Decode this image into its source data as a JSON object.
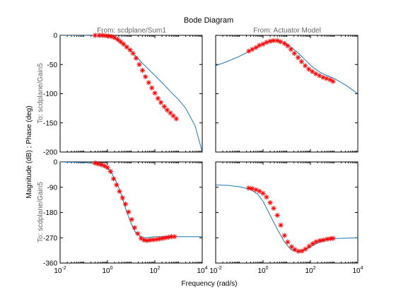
{
  "chart_data": {
    "type": "line",
    "title": "Bode Diagram",
    "xlabel": "Frequency  (rad/s)",
    "ylabel": "Magnitude (dB) ; Phase (deg)",
    "row_label": "To: scdplane/Gain5",
    "columns": [
      "From: scdplane/Sum1",
      "From: Actuator Model"
    ],
    "x_scale": "log",
    "xlim": [
      0.01,
      10000
    ],
    "x_ticks": [
      0.01,
      1,
      100,
      10000
    ],
    "x_tick_labels": [
      "10",
      "10",
      "10",
      "10"
    ],
    "x_tick_exponents": [
      "-2",
      "0",
      "2",
      "4"
    ],
    "line_color": "#1f77b4",
    "marker_color": "#ff0000",
    "marker": "*",
    "grid": false,
    "panels": [
      {
        "row": "magnitude",
        "column": 0,
        "ylim": [
          -200,
          0
        ],
        "y_ticks": [
          0,
          -50,
          -100,
          -150,
          -200
        ],
        "y_tick_labels": [
          "0",
          "-50",
          "-100",
          "-150",
          "-200"
        ],
        "line": {
          "x": [
            0.01,
            0.1,
            0.5,
            1,
            2,
            4,
            8,
            15,
            30,
            60,
            120,
            250,
            500,
            1000,
            2000,
            5000,
            10000
          ],
          "y": [
            0,
            0,
            -0.5,
            -1.5,
            -5,
            -13,
            -24,
            -35,
            -48,
            -60,
            -72,
            -85,
            -98,
            -110,
            -125,
            -155,
            -200
          ]
        },
        "markers": {
          "x": [
            0.3,
            0.45,
            0.6,
            0.8,
            1.1,
            1.5,
            2,
            2.7,
            3.6,
            4.8,
            6.5,
            9,
            12,
            16,
            22,
            30,
            40,
            55,
            75,
            100,
            135,
            180,
            250,
            330,
            450,
            600,
            800
          ],
          "y": [
            0,
            0,
            0,
            -0.5,
            -1,
            -2,
            -4,
            -7,
            -11,
            -15,
            -20,
            -25,
            -31,
            -39,
            -50,
            -60,
            -71,
            -81,
            -90,
            -99,
            -108,
            -115,
            -122,
            -128,
            -133,
            -138,
            -143
          ]
        }
      },
      {
        "row": "magnitude",
        "column": 1,
        "ylim": [
          -200,
          0
        ],
        "y_ticks": [
          0,
          -50,
          -100,
          -150,
          -200
        ],
        "y_tick_labels": [
          "",
          "",
          "",
          "",
          ""
        ],
        "line": {
          "x": [
            0.01,
            0.03,
            0.1,
            0.3,
            1,
            2,
            4,
            8,
            15,
            30,
            60,
            120,
            250,
            500,
            1000,
            3000,
            10000
          ],
          "y": [
            -52,
            -45,
            -36,
            -26,
            -15,
            -10,
            -9,
            -12,
            -20,
            -30,
            -42,
            -54,
            -63,
            -69,
            -74,
            -85,
            -100
          ]
        },
        "markers": {
          "x": [
            0.25,
            0.35,
            0.5,
            0.7,
            1,
            1.4,
            2,
            2.8,
            4,
            5.5,
            8,
            11,
            15,
            21,
            30,
            42,
            60,
            85,
            120,
            170,
            240,
            340,
            480,
            680,
            900
          ],
          "y": [
            -27,
            -24,
            -21,
            -17,
            -15,
            -12,
            -10,
            -9,
            -9,
            -11,
            -14,
            -18,
            -24,
            -31,
            -38,
            -45,
            -52,
            -58,
            -62,
            -66,
            -69,
            -72,
            -74,
            -76,
            -79
          ]
        }
      },
      {
        "row": "phase",
        "column": 0,
        "ylim": [
          -360,
          0
        ],
        "y_ticks": [
          0,
          -90,
          -180,
          -270,
          -360
        ],
        "y_tick_labels": [
          "0",
          "-90",
          "-180",
          "-270",
          "-360"
        ],
        "line": {
          "x": [
            0.01,
            0.1,
            0.3,
            0.6,
            1,
            1.5,
            2.5,
            4,
            6,
            10,
            15,
            25,
            40,
            60,
            100,
            200,
            400,
            1000,
            10000
          ],
          "y": [
            0,
            -2,
            -6,
            -12,
            -22,
            -40,
            -75,
            -120,
            -170,
            -220,
            -250,
            -265,
            -270,
            -268,
            -266,
            -266,
            -266,
            -266,
            -266
          ]
        },
        "markers": {
          "x": [
            0.3,
            0.4,
            0.55,
            0.75,
            1,
            1.35,
            1.8,
            2.4,
            3.2,
            4.3,
            5.8,
            7.8,
            10.5,
            14,
            19,
            26,
            35,
            47,
            63,
            85,
            115,
            155,
            210,
            280,
            380,
            500,
            680
          ],
          "y": [
            -4,
            -7,
            -10,
            -14,
            -20,
            -34,
            -60,
            -82,
            -105,
            -128,
            -150,
            -178,
            -205,
            -234,
            -255,
            -272,
            -278,
            -280,
            -278,
            -277,
            -276,
            -274,
            -272,
            -270,
            -268,
            -266,
            -266
          ]
        }
      },
      {
        "row": "phase",
        "column": 1,
        "ylim": [
          -360,
          0
        ],
        "y_ticks": [
          0,
          -90,
          -180,
          -270,
          -360
        ],
        "y_tick_labels": [
          "",
          "",
          "",
          "",
          ""
        ],
        "line": {
          "x": [
            0.01,
            0.03,
            0.1,
            0.3,
            0.6,
            1,
            2,
            4,
            8,
            15,
            30,
            60,
            120,
            250,
            500,
            1000,
            10000
          ],
          "y": [
            -82,
            -83,
            -88,
            -98,
            -115,
            -140,
            -190,
            -240,
            -285,
            -312,
            -320,
            -312,
            -298,
            -285,
            -276,
            -273,
            -270
          ]
        },
        "markers": {
          "x": [
            0.25,
            0.35,
            0.5,
            0.7,
            1,
            1.4,
            2,
            2.8,
            4,
            5.6,
            8,
            11,
            16,
            22,
            31,
            44,
            62,
            88,
            125,
            175,
            250,
            350,
            500,
            700,
            900
          ],
          "y": [
            -93,
            -95,
            -99,
            -104,
            -112,
            -125,
            -145,
            -165,
            -190,
            -225,
            -262,
            -285,
            -302,
            -312,
            -318,
            -317,
            -310,
            -300,
            -291,
            -284,
            -280,
            -278,
            -275,
            -273,
            -272
          ]
        }
      }
    ]
  }
}
